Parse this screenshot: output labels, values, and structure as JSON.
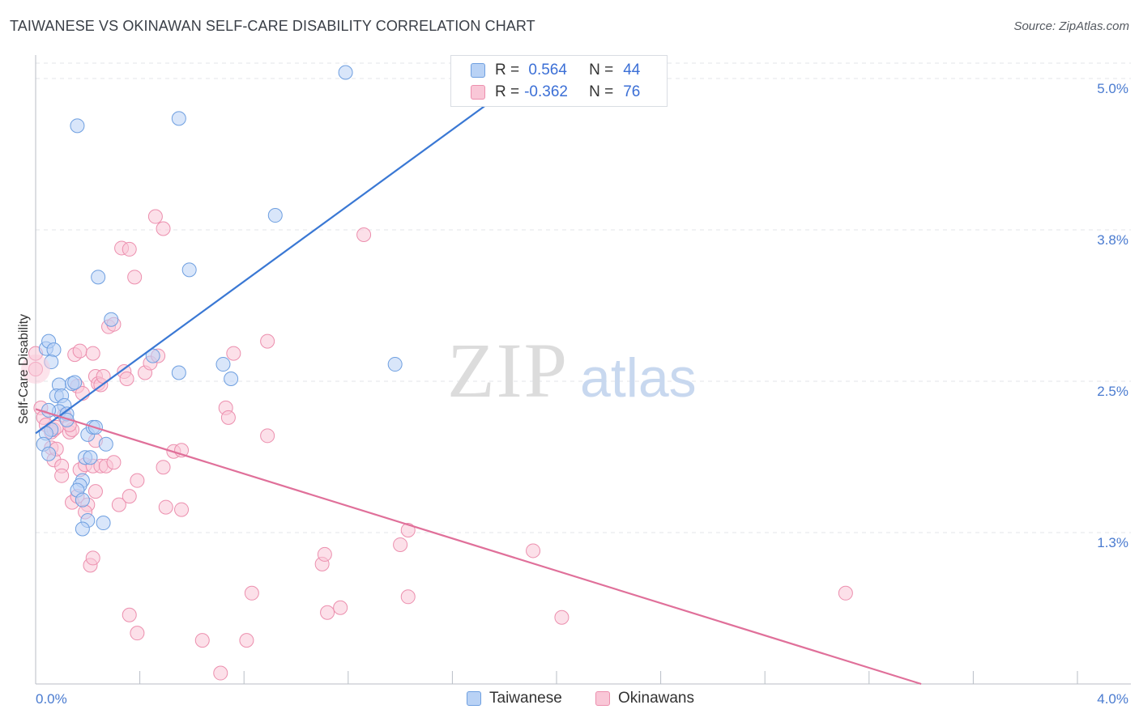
{
  "title": "TAIWANESE VS OKINAWAN SELF-CARE DISABILITY CORRELATION CHART",
  "source": "Source: ZipAtlas.com",
  "watermark": {
    "zip": "ZIP",
    "atlas": "atlas"
  },
  "colors": {
    "taiwanese_fill": "#b9d2f5",
    "taiwanese_stroke": "#6e9fe0",
    "taiwanese_line": "#3a78d4",
    "okinawan_fill": "#f9c7d7",
    "okinawan_stroke": "#ec8fae",
    "okinawan_line": "#e0709a",
    "grid": "#e3e6ea",
    "accent_text": "#3b6fd6"
  },
  "legend": {
    "rows": [
      {
        "r_label": "R =",
        "r_value": " 0.564",
        "n_label": "N =",
        "n_value": "44"
      },
      {
        "r_label": "R =",
        "r_value": "-0.362",
        "n_label": "N =",
        "n_value": "76"
      }
    ]
  },
  "bottom_legend": [
    "Taiwanese",
    "Okinawans"
  ],
  "chart_data": {
    "type": "scatter",
    "title": "TAIWANESE VS OKINAWAN SELF-CARE DISABILITY CORRELATION CHART",
    "xlabel": "",
    "ylabel": "Self-Care Disability",
    "xlim": [
      0,
      4.0
    ],
    "ylim": [
      0,
      5.25
    ],
    "x_tick_labels": [
      "0.0%",
      "4.0%"
    ],
    "y_ticks": [
      1.25,
      2.5,
      3.75,
      5.0
    ],
    "y_tick_labels": [
      "1.3%",
      "2.5%",
      "3.8%",
      "5.0%"
    ],
    "grid": true,
    "legend_position": "top-center",
    "series": [
      {
        "name": "Taiwanese",
        "r": 0.564,
        "n": 44,
        "trend": {
          "x": [
            0.0,
            1.85
          ],
          "y": [
            2.07,
            4.97
          ]
        },
        "points": [
          [
            0.04,
            2.77
          ],
          [
            0.05,
            2.83
          ],
          [
            0.07,
            2.76
          ],
          [
            0.06,
            2.66
          ],
          [
            0.09,
            2.47
          ],
          [
            0.08,
            2.38
          ],
          [
            0.1,
            2.38
          ],
          [
            0.11,
            2.3
          ],
          [
            0.09,
            2.25
          ],
          [
            0.12,
            2.23
          ],
          [
            0.12,
            2.18
          ],
          [
            0.14,
            2.48
          ],
          [
            0.15,
            2.49
          ],
          [
            0.05,
            2.26
          ],
          [
            0.06,
            2.1
          ],
          [
            0.04,
            2.07
          ],
          [
            0.03,
            1.98
          ],
          [
            0.05,
            1.9
          ],
          [
            0.2,
            2.06
          ],
          [
            0.22,
            2.12
          ],
          [
            0.23,
            2.12
          ],
          [
            0.27,
            1.98
          ],
          [
            0.19,
            1.87
          ],
          [
            0.21,
            1.87
          ],
          [
            0.18,
            1.68
          ],
          [
            0.17,
            1.64
          ],
          [
            0.16,
            1.6
          ],
          [
            0.18,
            1.52
          ],
          [
            0.2,
            1.35
          ],
          [
            0.18,
            1.28
          ],
          [
            0.26,
            1.33
          ],
          [
            0.16,
            4.61
          ],
          [
            0.55,
            4.67
          ],
          [
            0.92,
            3.87
          ],
          [
            0.59,
            3.42
          ],
          [
            0.24,
            3.36
          ],
          [
            0.29,
            3.01
          ],
          [
            0.45,
            2.71
          ],
          [
            0.55,
            2.57
          ],
          [
            0.72,
            2.64
          ],
          [
            0.75,
            2.52
          ],
          [
            1.19,
            5.05
          ],
          [
            1.76,
            5.05
          ],
          [
            1.38,
            2.64
          ]
        ]
      },
      {
        "name": "Okinawans",
        "r": -0.362,
        "n": 76,
        "trend": {
          "x": [
            0.0,
            3.4
          ],
          "y": [
            2.27,
            0.0
          ]
        },
        "points": [
          [
            0.0,
            2.73
          ],
          [
            0.0,
            2.6
          ],
          [
            0.02,
            2.28
          ],
          [
            0.03,
            2.2
          ],
          [
            0.04,
            2.14
          ],
          [
            0.06,
            2.08
          ],
          [
            0.07,
            2.1
          ],
          [
            0.08,
            2.12
          ],
          [
            0.06,
            1.95
          ],
          [
            0.07,
            1.85
          ],
          [
            0.08,
            1.94
          ],
          [
            0.1,
            1.8
          ],
          [
            0.1,
            1.72
          ],
          [
            0.11,
            2.22
          ],
          [
            0.13,
            2.08
          ],
          [
            0.14,
            2.1
          ],
          [
            0.13,
            2.14
          ],
          [
            0.16,
            2.46
          ],
          [
            0.18,
            2.4
          ],
          [
            0.15,
            2.72
          ],
          [
            0.17,
            2.75
          ],
          [
            0.22,
            2.73
          ],
          [
            0.23,
            2.54
          ],
          [
            0.24,
            2.48
          ],
          [
            0.25,
            2.47
          ],
          [
            0.26,
            2.54
          ],
          [
            0.28,
            2.95
          ],
          [
            0.3,
            2.97
          ],
          [
            0.34,
            2.58
          ],
          [
            0.35,
            2.52
          ],
          [
            0.42,
            2.57
          ],
          [
            0.44,
            2.65
          ],
          [
            0.47,
            2.71
          ],
          [
            0.33,
            3.6
          ],
          [
            0.36,
            3.59
          ],
          [
            0.38,
            3.36
          ],
          [
            0.46,
            3.86
          ],
          [
            0.49,
            3.76
          ],
          [
            0.17,
            1.77
          ],
          [
            0.19,
            1.81
          ],
          [
            0.22,
            1.8
          ],
          [
            0.23,
            2.01
          ],
          [
            0.25,
            1.8
          ],
          [
            0.27,
            1.8
          ],
          [
            0.3,
            1.83
          ],
          [
            0.32,
            1.48
          ],
          [
            0.14,
            1.5
          ],
          [
            0.16,
            1.55
          ],
          [
            0.2,
            1.48
          ],
          [
            0.19,
            1.42
          ],
          [
            0.23,
            1.59
          ],
          [
            0.36,
            1.55
          ],
          [
            0.39,
            1.68
          ],
          [
            0.49,
            1.79
          ],
          [
            0.53,
            1.92
          ],
          [
            0.56,
            1.93
          ],
          [
            0.5,
            1.46
          ],
          [
            0.56,
            1.44
          ],
          [
            0.73,
            2.28
          ],
          [
            0.74,
            2.2
          ],
          [
            0.76,
            2.73
          ],
          [
            0.89,
            2.83
          ],
          [
            0.89,
            2.05
          ],
          [
            0.21,
            0.98
          ],
          [
            0.36,
            0.57
          ],
          [
            0.39,
            0.42
          ],
          [
            0.64,
            0.36
          ],
          [
            0.71,
            0.09
          ],
          [
            0.81,
            0.36
          ],
          [
            0.83,
            0.75
          ],
          [
            1.1,
            0.99
          ],
          [
            1.11,
            1.07
          ],
          [
            1.12,
            0.59
          ],
          [
            1.17,
            0.63
          ],
          [
            1.4,
            1.15
          ],
          [
            1.43,
            0.72
          ]
        ]
      }
    ],
    "extra_okinawan_points": [
      [
        1.43,
        1.27
      ],
      [
        1.91,
        1.1
      ],
      [
        2.02,
        0.55
      ],
      [
        3.11,
        0.75
      ],
      [
        1.26,
        3.71
      ],
      [
        0.22,
        1.04
      ]
    ]
  }
}
